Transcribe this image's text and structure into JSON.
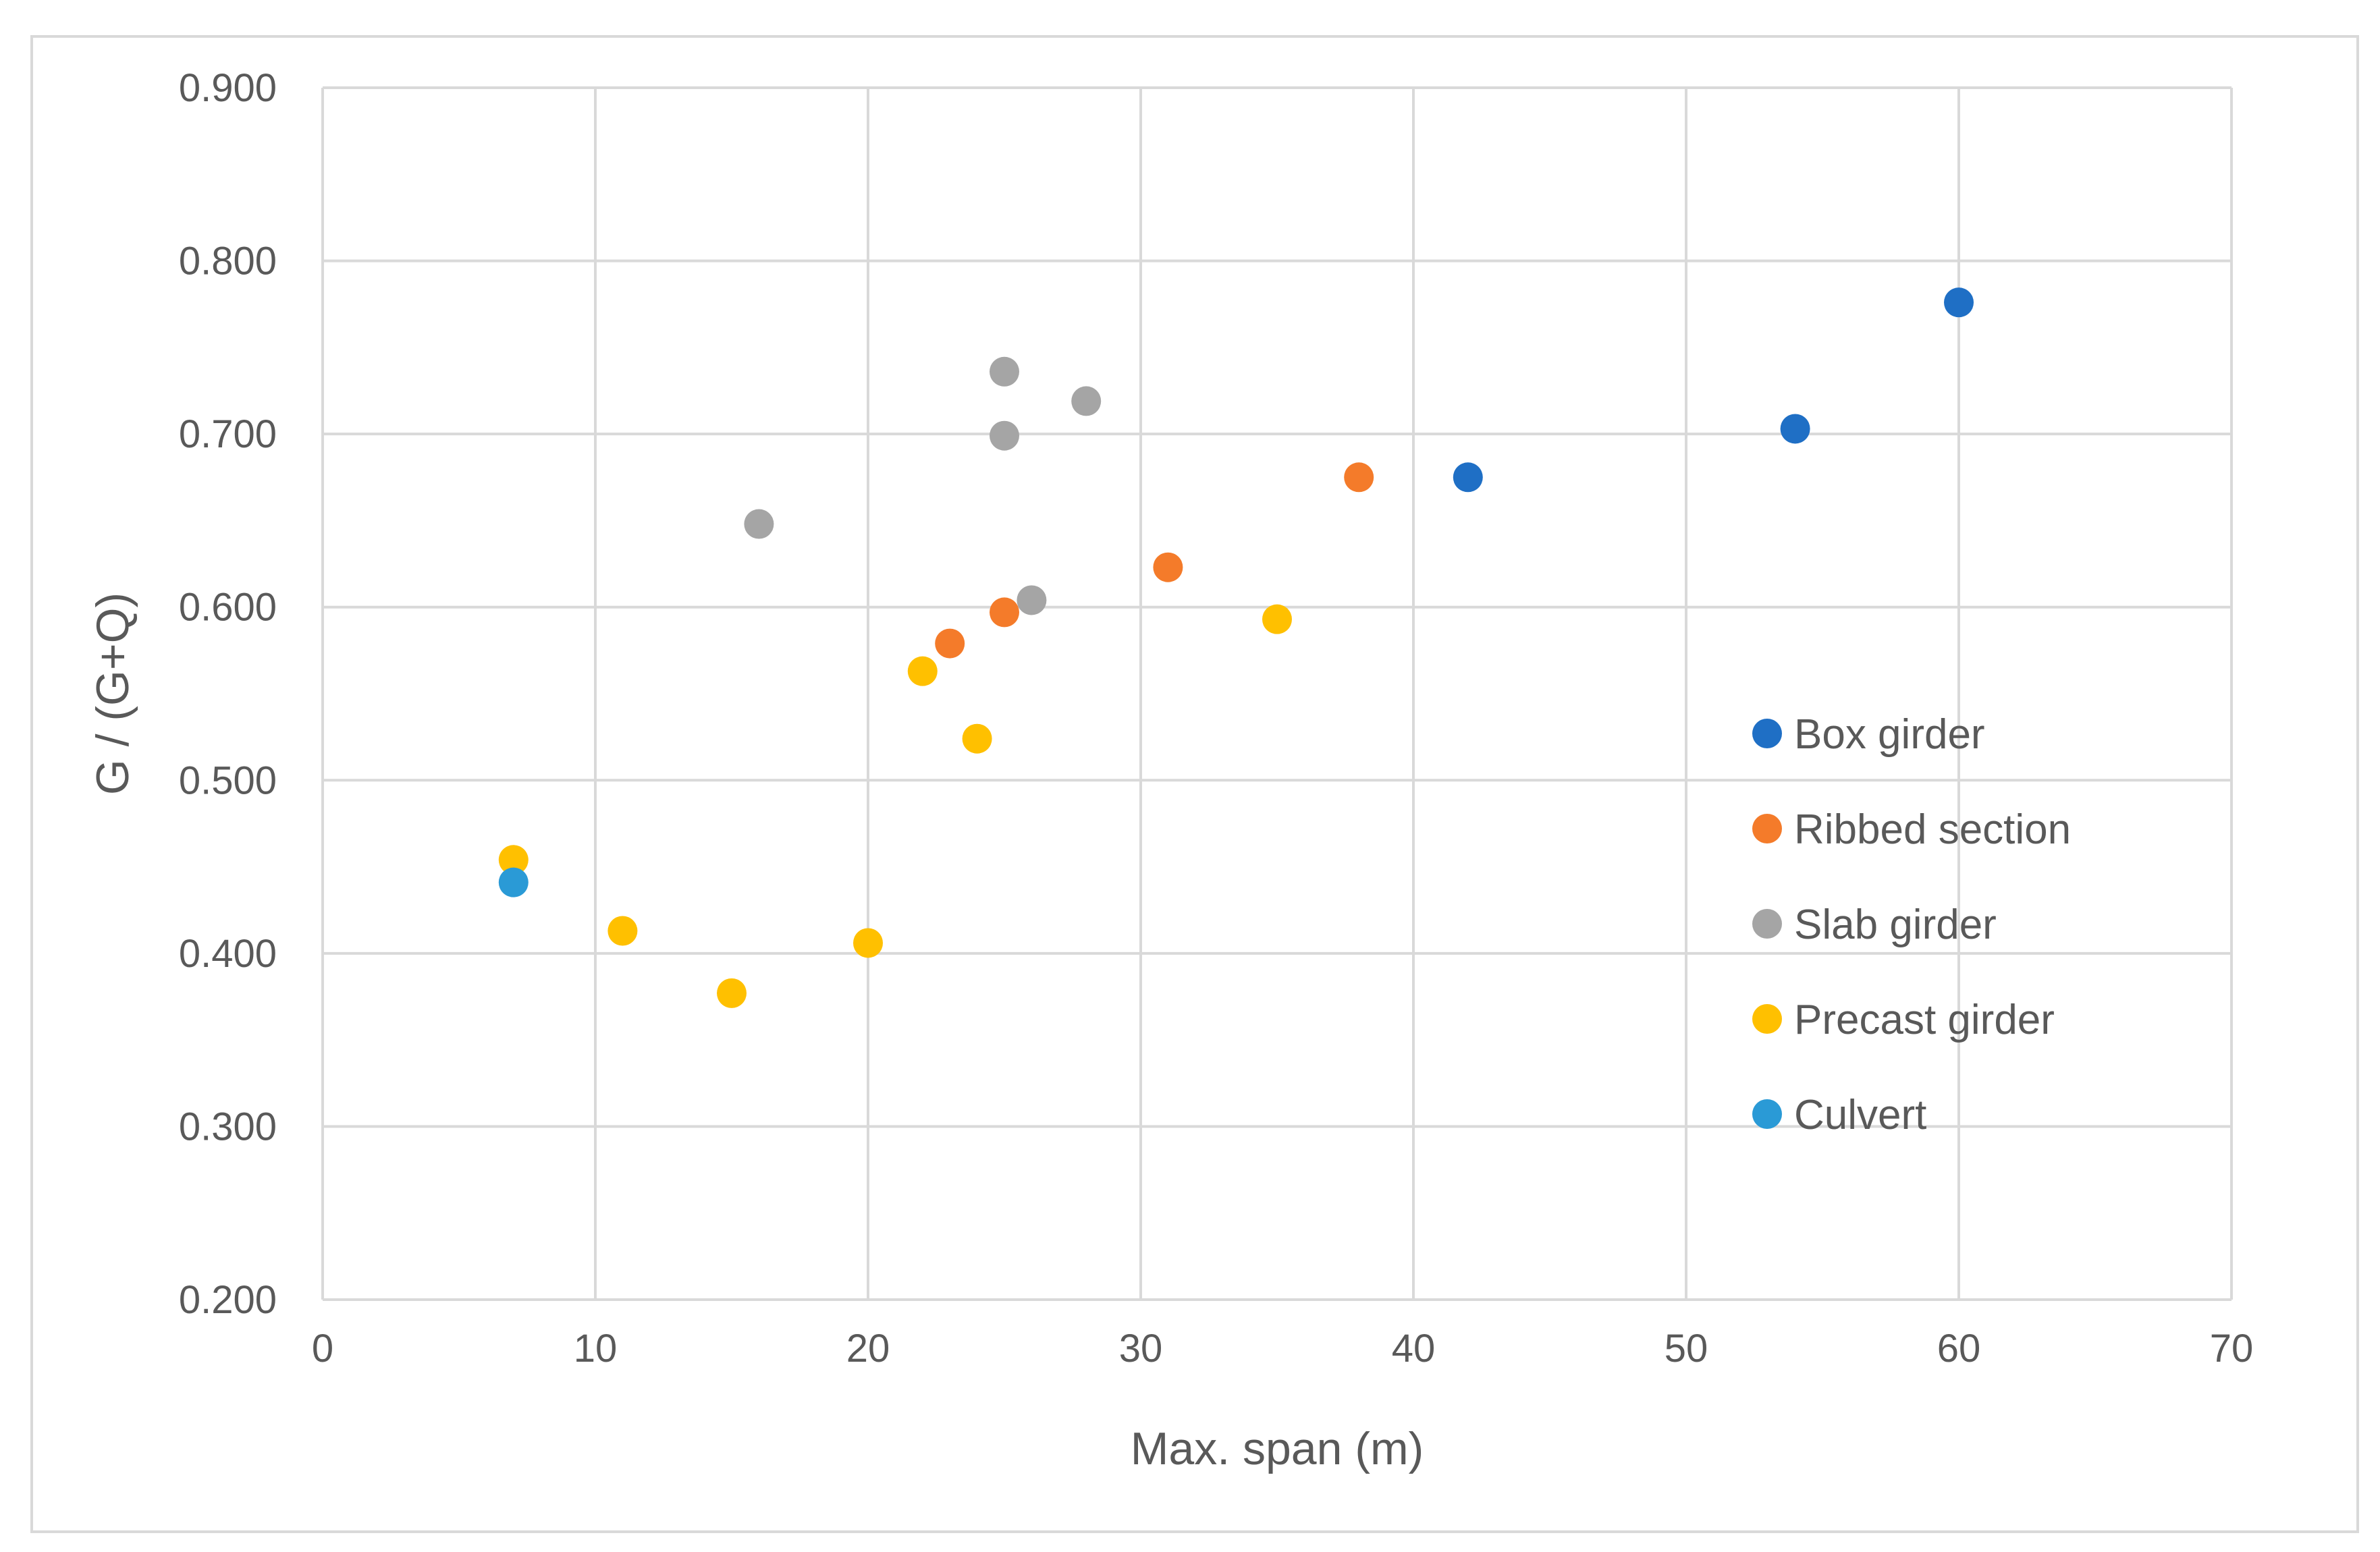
{
  "chart_data": {
    "type": "scatter",
    "title": "",
    "xlabel": "Max. span (m)",
    "ylabel": "G / (G+Q)",
    "xlim": [
      0,
      70
    ],
    "ylim": [
      0.2,
      0.9
    ],
    "xticks": [
      0,
      10,
      20,
      30,
      40,
      50,
      60,
      70
    ],
    "yticks": [
      0.2,
      0.3,
      0.4,
      0.5,
      0.6,
      0.7,
      0.8,
      0.9
    ],
    "ytick_labels": [
      "0.200",
      "0.300",
      "0.400",
      "0.500",
      "0.600",
      "0.700",
      "0.800",
      "0.900"
    ],
    "xtick_labels": [
      "0",
      "10",
      "20",
      "30",
      "40",
      "50",
      "60",
      "70"
    ],
    "grid": true,
    "legend_position": "right",
    "series": [
      {
        "name": "Box girder",
        "color": "#1f6fc5",
        "points": [
          [
            42,
            0.675
          ],
          [
            54,
            0.703
          ],
          [
            60,
            0.776
          ]
        ]
      },
      {
        "name": "Ribbed section",
        "color": "#f47b2a",
        "points": [
          [
            23,
            0.579
          ],
          [
            25,
            0.597
          ],
          [
            31,
            0.623
          ],
          [
            38,
            0.675
          ]
        ]
      },
      {
        "name": "Slab girder",
        "color": "#a5a5a5",
        "points": [
          [
            16,
            0.648
          ],
          [
            25,
            0.736
          ],
          [
            25,
            0.699
          ],
          [
            26,
            0.604
          ],
          [
            28,
            0.719
          ]
        ]
      },
      {
        "name": "Precast girder",
        "color": "#ffc000",
        "points": [
          [
            7,
            0.454
          ],
          [
            11,
            0.413
          ],
          [
            15,
            0.377
          ],
          [
            20,
            0.406
          ],
          [
            22,
            0.563
          ],
          [
            24,
            0.524
          ],
          [
            35,
            0.593
          ]
        ]
      },
      {
        "name": "Culvert",
        "color": "#2a9ad6",
        "points": [
          [
            7,
            0.441
          ]
        ]
      }
    ]
  }
}
